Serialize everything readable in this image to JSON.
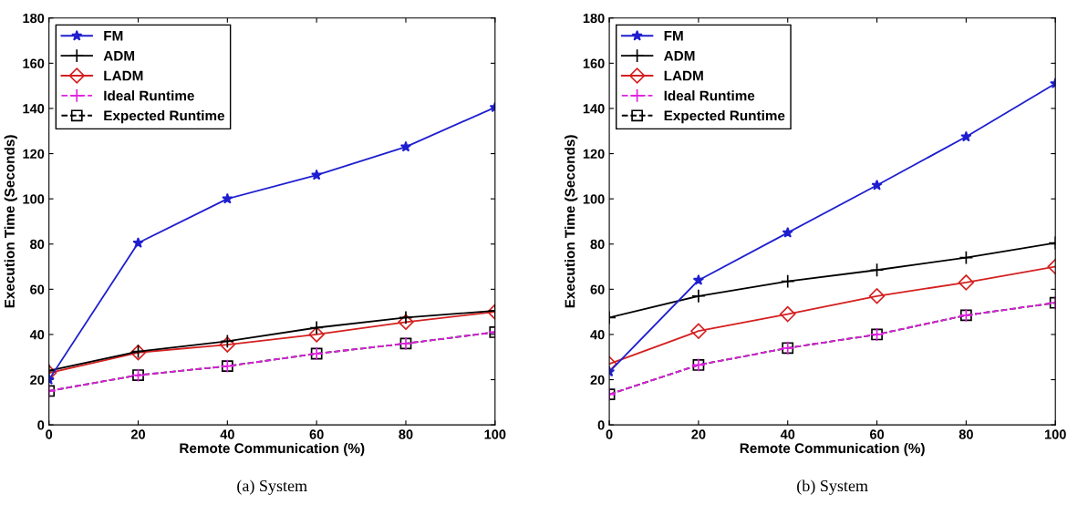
{
  "chart_data": [
    {
      "type": "line",
      "xlabel": "Remote Communication (%)",
      "ylabel": "Execution Time (Seconds)",
      "x": [
        0,
        20,
        40,
        60,
        80,
        100
      ],
      "xlim": [
        0,
        100
      ],
      "xticks": [
        0,
        20,
        40,
        60,
        80,
        100
      ],
      "ylim": [
        0,
        180
      ],
      "yticks": [
        0,
        20,
        40,
        60,
        80,
        100,
        120,
        140,
        160,
        180
      ],
      "grid": false,
      "legend": "top left",
      "annotations": [
        "(a) System"
      ],
      "series": [
        {
          "name": "FM",
          "color": "#1f1fd0",
          "marker": "star",
          "line_style": "solid",
          "values": [
            20,
            80.5,
            100,
            110.5,
            123,
            140.5
          ]
        },
        {
          "name": "ADM",
          "color": "#000000",
          "marker": "cross",
          "line_style": "solid",
          "values": [
            24,
            32.5,
            37,
            43,
            47.5,
            50.5
          ]
        },
        {
          "name": "LADM",
          "color": "#d42020",
          "marker": "diamond",
          "line_style": "solid",
          "values": [
            23,
            32,
            35.5,
            40,
            45.5,
            50
          ]
        },
        {
          "name": "Ideal Runtime",
          "color": "#e020e0",
          "marker": "cross",
          "line_style": "dashed",
          "values": [
            15,
            22,
            26,
            31.5,
            36,
            41
          ]
        },
        {
          "name": "Expected Runtime",
          "color": "#000000",
          "marker": "square",
          "line_style": "dashed",
          "values": [
            15,
            22,
            26,
            31.5,
            36,
            41
          ]
        }
      ]
    },
    {
      "type": "line",
      "xlabel": "Remote Communication (%)",
      "ylabel": "Execution Time (Seconds)",
      "x": [
        0,
        20,
        40,
        60,
        80,
        100
      ],
      "xlim": [
        0,
        100
      ],
      "xticks": [
        0,
        20,
        40,
        60,
        80,
        100
      ],
      "ylim": [
        0,
        180
      ],
      "yticks": [
        0,
        20,
        40,
        60,
        80,
        100,
        120,
        140,
        160,
        180
      ],
      "grid": false,
      "legend": "top left",
      "annotations": [
        "(b) System"
      ],
      "series": [
        {
          "name": "FM",
          "color": "#1f1fd0",
          "marker": "star",
          "line_style": "solid",
          "values": [
            23.5,
            64,
            85,
            106,
            127.5,
            151
          ]
        },
        {
          "name": "ADM",
          "color": "#000000",
          "marker": "cross",
          "line_style": "solid",
          "values": [
            47.5,
            57,
            63.5,
            68.5,
            74,
            80.5
          ]
        },
        {
          "name": "LADM",
          "color": "#d42020",
          "marker": "diamond",
          "line_style": "solid",
          "values": [
            27,
            41.5,
            49,
            57,
            63,
            70
          ]
        },
        {
          "name": "Ideal Runtime",
          "color": "#e020e0",
          "marker": "cross",
          "line_style": "dashed",
          "values": [
            13.5,
            26.5,
            34,
            40,
            48.5,
            54
          ]
        },
        {
          "name": "Expected Runtime",
          "color": "#000000",
          "marker": "square",
          "line_style": "dashed",
          "values": [
            13.5,
            26.5,
            34,
            40,
            48.5,
            54
          ]
        }
      ]
    }
  ]
}
